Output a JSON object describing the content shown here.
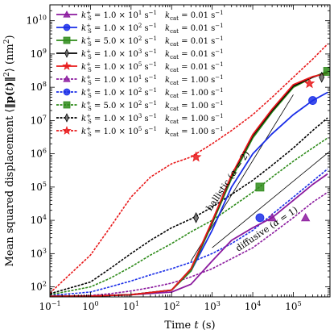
{
  "chart_data": {
    "type": "line",
    "xlabel": "Time t (s)",
    "ylabel": "Mean squared displacement ⟨‖p(t)‖²⟩ (nm²)",
    "xscale": "log",
    "yscale": "log",
    "xlim": [
      0.1,
      800000
    ],
    "ylim": [
      50,
      30000000000
    ],
    "xticks": [
      {
        "value": 0.1,
        "base": "10",
        "exp": "−1"
      },
      {
        "value": 1,
        "base": "10",
        "exp": "0"
      },
      {
        "value": 10,
        "base": "10",
        "exp": "1"
      },
      {
        "value": 100,
        "base": "10",
        "exp": "2"
      },
      {
        "value": 1000,
        "base": "10",
        "exp": "3"
      },
      {
        "value": 10000,
        "base": "10",
        "exp": "4"
      },
      {
        "value": 100000,
        "base": "10",
        "exp": "5"
      }
    ],
    "yticks": [
      {
        "value": 100,
        "base": "10",
        "exp": "2"
      },
      {
        "value": 1000,
        "base": "10",
        "exp": "3"
      },
      {
        "value": 10000,
        "base": "10",
        "exp": "4"
      },
      {
        "value": 100000,
        "base": "10",
        "exp": "5"
      },
      {
        "value": 1000000,
        "base": "10",
        "exp": "6"
      },
      {
        "value": 10000000,
        "base": "10",
        "exp": "7"
      },
      {
        "value": 100000000,
        "base": "10",
        "exp": "8"
      },
      {
        "value": 1000000000,
        "base": "10",
        "exp": "9"
      },
      {
        "value": 10000000000,
        "base": "10",
        "exp": "10"
      }
    ],
    "legend_position": "top-left",
    "series": [
      {
        "name": "k_S^+ = 1.0×10^1 s^−1   k_cat = 0.01 s^−1",
        "color": "#8b1a9e",
        "dash": "solid",
        "marker": "triangle",
        "x": [
          0.1,
          1,
          10,
          100,
          300,
          1000,
          3000,
          10000,
          30000,
          100000,
          300000,
          700000
        ],
        "y": [
          52,
          53,
          58,
          70,
          120,
          600,
          2500,
          6000,
          12000,
          40000,
          120000,
          250000
        ],
        "marker_x": [
          30000
        ],
        "marker_y": [
          12000
        ]
      },
      {
        "name": "k_S^+ = 1.0×10^2 s^−1   k_cat = 0.01 s^−1",
        "color": "#1a2ee8",
        "dash": "solid",
        "marker": "circle",
        "x": [
          0.1,
          1,
          10,
          100,
          300,
          1000,
          3000,
          10000,
          30000,
          100000,
          300000,
          700000
        ],
        "y": [
          52,
          53,
          58,
          80,
          300,
          5000,
          100000,
          1000000,
          4000000,
          15000000,
          40000000,
          70000000
        ],
        "marker_x": [
          300000
        ],
        "marker_y": [
          40000000
        ]
      },
      {
        "name": "k_S^+ = 5.0×10^2 s^−1   k_cat = 0.01 s^−1",
        "color": "#2e8b1a",
        "dash": "solid",
        "marker": "square",
        "x": [
          0.1,
          1,
          10,
          100,
          300,
          1000,
          3000,
          10000,
          30000,
          100000,
          300000,
          700000
        ],
        "y": [
          52,
          53,
          58,
          80,
          300,
          8000,
          180000,
          3000000,
          18000000,
          100000000,
          200000000,
          300000000
        ],
        "marker_x": [
          700000
        ],
        "marker_y": [
          300000000
        ]
      },
      {
        "name": "k_S^+ = 1.0×10^3 s^−1   k_cat = 0.01 s^−1",
        "color": "#000000",
        "dash": "solid",
        "marker": "diamond",
        "x": [
          0.1,
          1,
          10,
          100,
          300,
          1000,
          3000,
          10000,
          30000,
          100000,
          300000,
          700000
        ],
        "y": [
          52,
          53,
          58,
          80,
          350,
          9000,
          220000,
          3500000,
          20000000,
          110000000,
          200000000,
          280000000
        ],
        "marker_x": [
          500000
        ],
        "marker_y": [
          200000000
        ]
      },
      {
        "name": "k_S^+ = 1.0×10^5 s^−1   k_cat = 0.01 s^−1",
        "color": "#e8191a",
        "dash": "solid",
        "marker": "star",
        "x": [
          0.1,
          1,
          10,
          100,
          300,
          1000,
          3000,
          10000,
          30000,
          100000,
          300000,
          700000
        ],
        "y": [
          52,
          53,
          58,
          80,
          350,
          9500,
          230000,
          3800000,
          22000000,
          120000000,
          210000000,
          260000000
        ],
        "marker_x": [
          250000
        ],
        "marker_y": [
          130000000
        ]
      },
      {
        "name": "k_S^+ = 1.0×10^1 s^−1   k_cat = 1.00 s^−1",
        "color": "#8b1a9e",
        "dash": "dash",
        "marker": "triangle",
        "x": [
          0.1,
          1,
          3,
          10,
          30,
          100,
          300,
          1000,
          3000,
          10000,
          30000,
          100000,
          300000,
          700000
        ],
        "y": [
          52,
          55,
          62,
          75,
          95,
          130,
          200,
          350,
          700,
          1500,
          4000,
          12000,
          35000,
          70000
        ],
        "marker_x": [
          200000
        ],
        "marker_y": [
          12000
        ]
      },
      {
        "name": "k_S^+ = 1.0×10^2 s^−1   k_cat = 1.00 s^−1",
        "color": "#1a2ee8",
        "dash": "dash",
        "marker": "circle",
        "x": [
          0.1,
          1,
          3,
          10,
          30,
          100,
          300,
          1000,
          3000,
          10000,
          30000,
          100000,
          300000,
          700000
        ],
        "y": [
          55,
          70,
          100,
          150,
          230,
          350,
          550,
          1000,
          2000,
          5000,
          15000,
          50000,
          150000,
          350000
        ],
        "marker_x": [
          15000
        ],
        "marker_y": [
          12000
        ]
      },
      {
        "name": "k_S^+ = 5.0×10^2 s^−1   k_cat = 1.00 s^−1",
        "color": "#2e8b1a",
        "dash": "dash",
        "marker": "square",
        "x": [
          0.1,
          1,
          3,
          10,
          30,
          100,
          300,
          1000,
          3000,
          10000,
          30000,
          100000,
          300000,
          700000
        ],
        "y": [
          58,
          100,
          180,
          400,
          900,
          2000,
          4500,
          10000,
          25000,
          70000,
          200000,
          600000,
          1500000,
          3000000
        ],
        "marker_x": [
          15000
        ],
        "marker_y": [
          100000
        ]
      },
      {
        "name": "k_S^+ = 1.0×10^3 s^−1   k_cat = 1.00 s^−1",
        "color": "#000000",
        "dash": "dash",
        "marker": "diamond",
        "x": [
          0.1,
          1,
          3,
          10,
          30,
          100,
          300,
          1000,
          3000,
          10000,
          30000,
          100000,
          300000,
          700000
        ],
        "y": [
          62,
          140,
          350,
          1000,
          2500,
          6000,
          11000,
          25000,
          60000,
          160000,
          450000,
          1500000,
          5000000,
          12000000
        ],
        "marker_x": [
          400
        ],
        "marker_y": [
          12000
        ]
      },
      {
        "name": "k_S^+ = 1.0×10^5 s^−1   k_cat = 1.00 s^−1",
        "color": "#e8191a",
        "dash": "dash",
        "marker": "star",
        "x": [
          0.1,
          1,
          3,
          10,
          30,
          100,
          300,
          1000,
          3000,
          10000,
          30000,
          100000,
          300000,
          700000
        ],
        "y": [
          65,
          900,
          6000,
          50000,
          200000,
          500000,
          800000,
          2000000,
          5000000,
          15000000,
          50000000,
          200000000,
          700000000,
          2000000000
        ],
        "marker_x": [
          400
        ],
        "marker_y": [
          800000
        ]
      }
    ],
    "reference_lines": [
      {
        "label": "ballistic (α = 2)",
        "x": [
          300,
          100000
        ],
        "y": [
          600,
          60000000
        ]
      },
      {
        "label": "diffusive (α = 1)",
        "x": [
          1000,
          800000
        ],
        "y": [
          1500,
          1200000
        ]
      }
    ]
  },
  "legend": {
    "rows": [
      {
        "k_prefix": "k",
        "k_sub": "S",
        "k_sup": "+",
        "eq": " = ",
        "mant": "1.0",
        "times": "×",
        "base": "10",
        "exp": "1",
        "unit": " s",
        "unit_exp": "−1",
        "kcat_label": "k",
        "kcat_sub": "cat",
        "kcat_val": " = 0.01 s",
        "kcat_exp": "−1"
      },
      {
        "k_prefix": "k",
        "k_sub": "S",
        "k_sup": "+",
        "eq": " = ",
        "mant": "1.0",
        "times": "×",
        "base": "10",
        "exp": "2",
        "unit": " s",
        "unit_exp": "−1",
        "kcat_label": "k",
        "kcat_sub": "cat",
        "kcat_val": " = 0.01 s",
        "kcat_exp": "−1"
      },
      {
        "k_prefix": "k",
        "k_sub": "S",
        "k_sup": "+",
        "eq": " = ",
        "mant": "5.0",
        "times": "×",
        "base": "10",
        "exp": "2",
        "unit": " s",
        "unit_exp": "−1",
        "kcat_label": "k",
        "kcat_sub": "cat",
        "kcat_val": " = 0.01 s",
        "kcat_exp": "−1"
      },
      {
        "k_prefix": "k",
        "k_sub": "S",
        "k_sup": "+",
        "eq": " = ",
        "mant": "1.0",
        "times": "×",
        "base": "10",
        "exp": "3",
        "unit": " s",
        "unit_exp": "−1",
        "kcat_label": "k",
        "kcat_sub": "cat",
        "kcat_val": " = 0.01 s",
        "kcat_exp": "−1"
      },
      {
        "k_prefix": "k",
        "k_sub": "S",
        "k_sup": "+",
        "eq": " = ",
        "mant": "1.0",
        "times": "×",
        "base": "10",
        "exp": "5",
        "unit": " s",
        "unit_exp": "−1",
        "kcat_label": "k",
        "kcat_sub": "cat",
        "kcat_val": " = 0.01 s",
        "kcat_exp": "−1"
      },
      {
        "k_prefix": "k",
        "k_sub": "S",
        "k_sup": "+",
        "eq": " = ",
        "mant": "1.0",
        "times": "×",
        "base": "10",
        "exp": "1",
        "unit": " s",
        "unit_exp": "−1",
        "kcat_label": "k",
        "kcat_sub": "cat",
        "kcat_val": " = 1.00 s",
        "kcat_exp": "−1"
      },
      {
        "k_prefix": "k",
        "k_sub": "S",
        "k_sup": "+",
        "eq": " = ",
        "mant": "1.0",
        "times": "×",
        "base": "10",
        "exp": "2",
        "unit": " s",
        "unit_exp": "−1",
        "kcat_label": "k",
        "kcat_sub": "cat",
        "kcat_val": " = 1.00 s",
        "kcat_exp": "−1"
      },
      {
        "k_prefix": "k",
        "k_sub": "S",
        "k_sup": "+",
        "eq": " = ",
        "mant": "5.0",
        "times": "×",
        "base": "10",
        "exp": "2",
        "unit": " s",
        "unit_exp": "−1",
        "kcat_label": "k",
        "kcat_sub": "cat",
        "kcat_val": " = 1.00 s",
        "kcat_exp": "−1"
      },
      {
        "k_prefix": "k",
        "k_sub": "S",
        "k_sup": "+",
        "eq": " = ",
        "mant": "1.0",
        "times": "×",
        "base": "10",
        "exp": "3",
        "unit": " s",
        "unit_exp": "−1",
        "kcat_label": "k",
        "kcat_sub": "cat",
        "kcat_val": " = 1.00 s",
        "kcat_exp": "−1"
      },
      {
        "k_prefix": "k",
        "k_sub": "S",
        "k_sup": "+",
        "eq": " = ",
        "mant": "1.0",
        "times": "×",
        "base": "10",
        "exp": "5",
        "unit": " s",
        "unit_exp": "−1",
        "kcat_label": "k",
        "kcat_sub": "cat",
        "kcat_val": " = 1.00 s",
        "kcat_exp": "−1"
      }
    ]
  },
  "axis_text": {
    "x_prefix": "Time ",
    "x_var": "t",
    "x_suffix": " (s)",
    "y_prefix": "Mean squared displacement ⟨",
    "y_var": "‖p(",
    "y_t": "t",
    "y_close": ")‖",
    "y_sq": "2",
    "y_close2": "⟩ (nm",
    "y_sq2": "2",
    "y_end": ")"
  },
  "annotations": {
    "ballistic_prefix": "ballistic (",
    "ballistic_alpha": "α",
    "ballistic_suffix": " = 2)",
    "diffusive_prefix": "diffusive (",
    "diffusive_alpha": "α",
    "diffusive_suffix": " = 1)"
  }
}
